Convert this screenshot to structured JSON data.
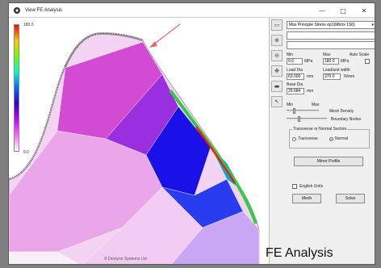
{
  "window": {
    "title": "View FE Analysis",
    "minimize": "—",
    "maximize": "□",
    "close": "✕"
  },
  "colors": {
    "accent_arrow": "#e26a6a",
    "mesh_magenta": "#cc00cc",
    "mesh_blue": "#1a10e8",
    "highlight_green": "#33cc44",
    "highlight_red": "#ee2200"
  },
  "plot": {
    "max_label": "180.0",
    "min_label": "0.0",
    "copyright": "© Dontyne Systems Ltd"
  },
  "panel": {
    "result_select": "Max Principle Stress σp1(Mbrtx 1S0)",
    "min_label": "Min",
    "max_label": "Max",
    "auto_scale_label": "Auto Scale",
    "min_value": "0.0",
    "min_unit": "MPa",
    "max_value": "180.0",
    "max_unit": "MPa",
    "load_dia_label": "Load Dia",
    "load_unit_width_label": "Load/unit width",
    "load_dia_value": "63.000",
    "load_dia_unit": "mm",
    "load_unit_value": "270.0",
    "load_unit_unit": "N/mm",
    "base_dia_label": "Base Dia",
    "base_dia_value": "29.684",
    "base_dia_unit": "mm",
    "slider_min": "Min",
    "slider_max": "Max",
    "mesh_density_label": "Mesh Density",
    "boundary_nodes_label": "Boundary Nodes",
    "section_group_label": "Transverse or Normal Section",
    "transverse_label": "Transverse",
    "normal_label": "Normal",
    "mirror_button": "Mirror Profile",
    "english_units_label": "English Units",
    "mesh_button": "Mesh",
    "solve_button": "Solve"
  },
  "toolbar": [
    {
      "name": "pan-icon",
      "glyph": "▭"
    },
    {
      "name": "zoom-in-icon",
      "glyph": "⊕"
    },
    {
      "name": "zoom-out-icon",
      "glyph": "⊖"
    },
    {
      "name": "move-icon",
      "glyph": "✥"
    },
    {
      "name": "ruler-icon",
      "glyph": "▬"
    },
    {
      "name": "pointer-icon",
      "glyph": "↖"
    }
  ],
  "caption": "FE Analysis"
}
